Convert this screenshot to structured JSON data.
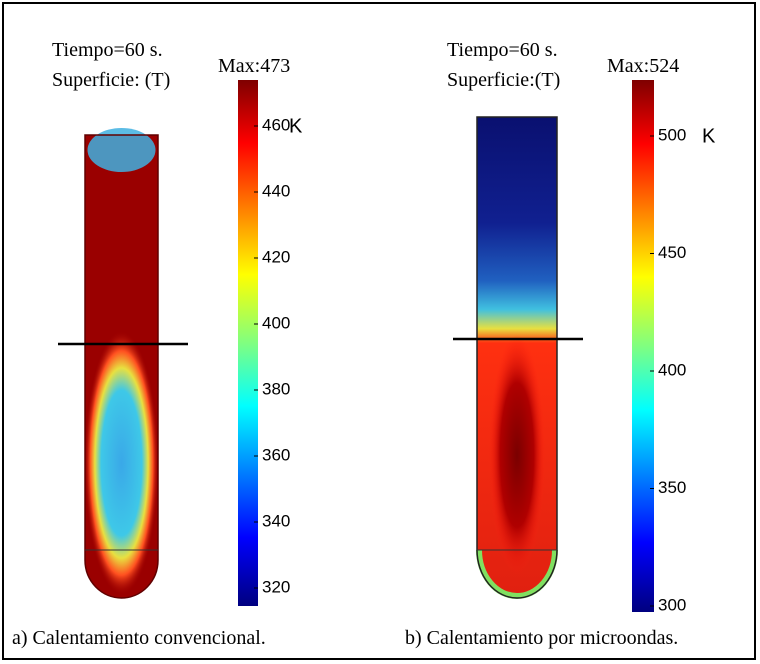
{
  "panels": [
    {
      "time": "Tiempo=60 s.",
      "surface": "Superficie: (T)",
      "max": "Max:473",
      "unit": "K",
      "colorbar_ticks": [
        "460",
        "440",
        "420",
        "400",
        "380",
        "360",
        "340",
        "320"
      ],
      "caption": "a) Calentamiento convencional."
    },
    {
      "time": "Tiempo=60 s.",
      "surface": "Superficie:(T)",
      "max": "Max:524",
      "unit": "K",
      "colorbar_ticks": [
        "500",
        "450",
        "400",
        "350",
        "300"
      ],
      "caption": "b) Calentamiento por microondas."
    }
  ]
}
